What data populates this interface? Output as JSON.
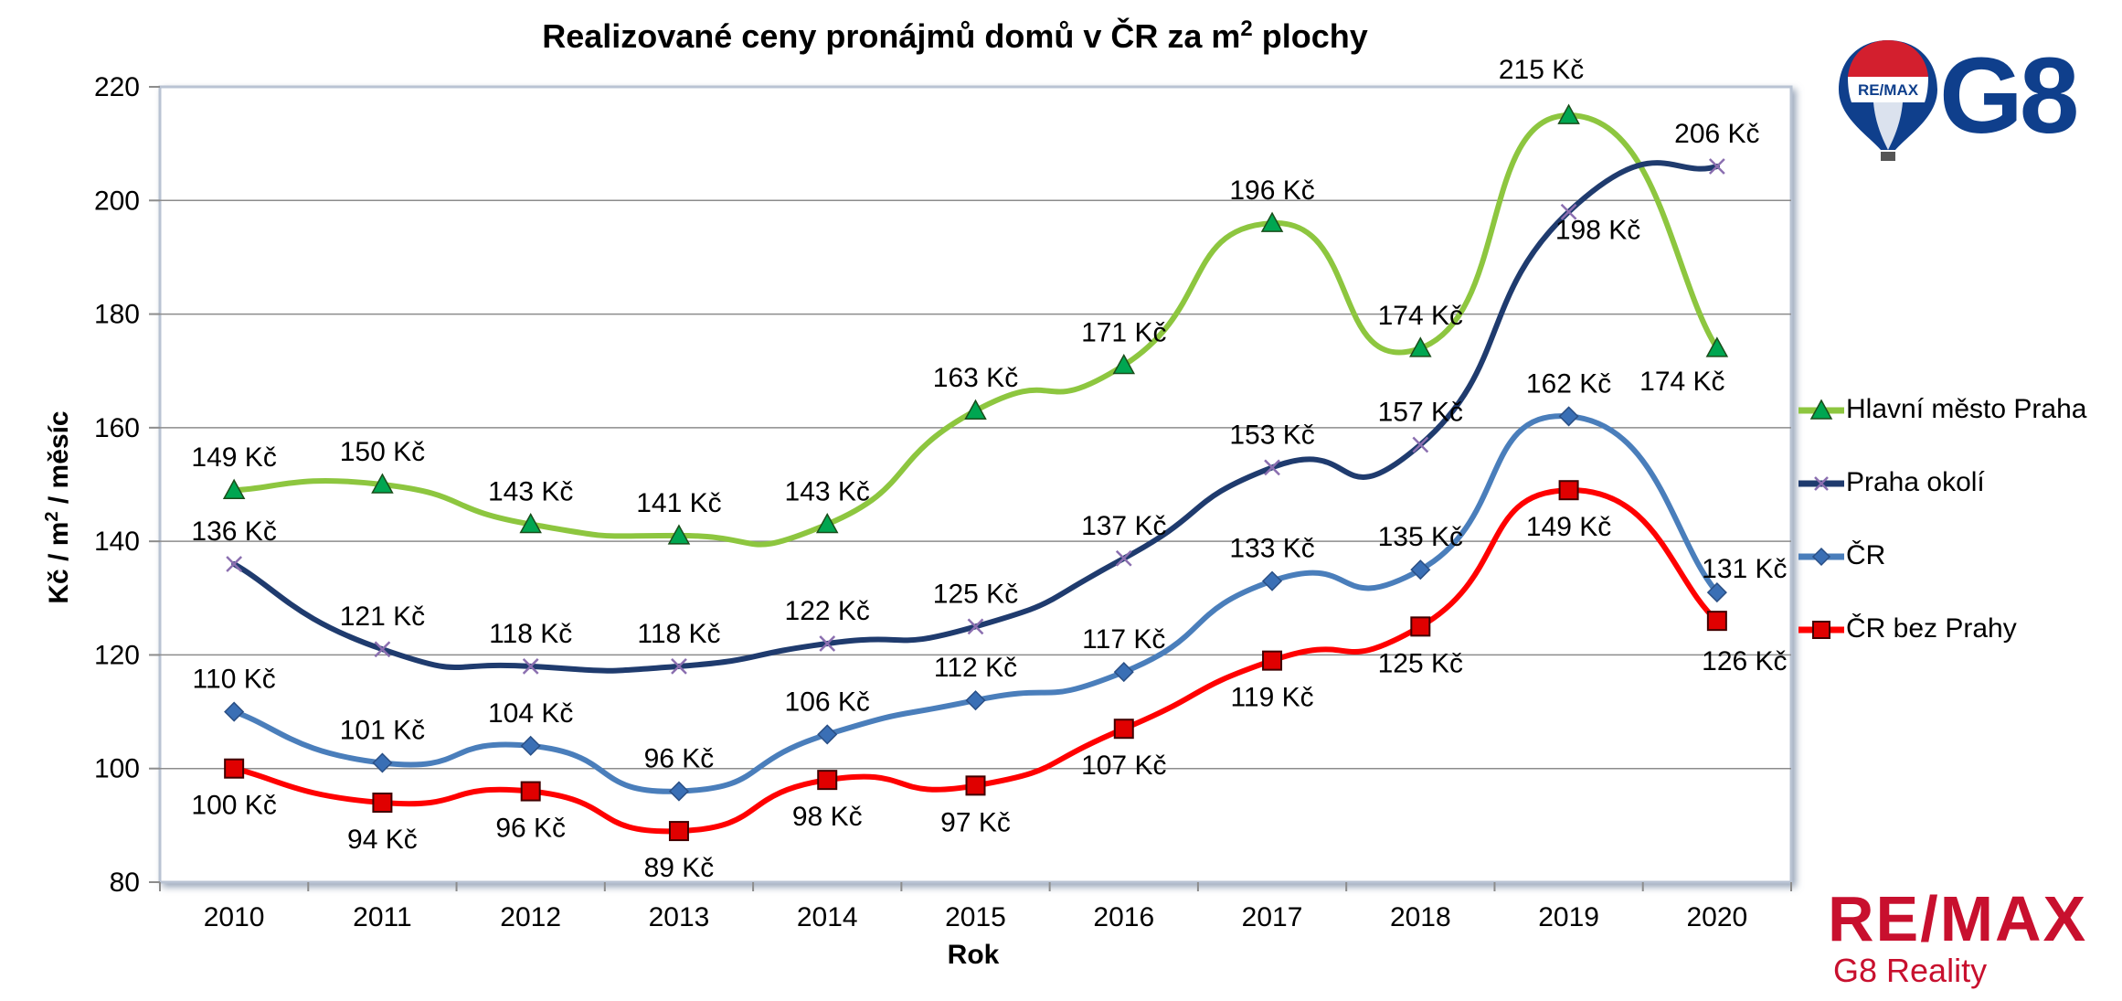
{
  "chart_data": {
    "type": "line",
    "title": "Realizované ceny pronájmů domů v ČR za m",
    "title_sup": "2",
    "title_suffix": " plochy",
    "xlabel": "Rok",
    "ylabel_prefix": "Kč / m",
    "ylabel_sup": "2",
    "ylabel_suffix": " / měsíc",
    "ylim": [
      80,
      220
    ],
    "yticks": [
      80,
      100,
      120,
      140,
      160,
      180,
      200,
      220
    ],
    "x": [
      "2010",
      "2011",
      "2012",
      "2013",
      "2014",
      "2015",
      "2016",
      "2017",
      "2018",
      "2019",
      "2020"
    ],
    "grid": true,
    "legend_position": "right",
    "series": [
      {
        "name": "Hlavní město Praha",
        "color": "#8dc63f",
        "marker": "triangle",
        "values": [
          149,
          150,
          143,
          141,
          143,
          163,
          171,
          196,
          174,
          215,
          174
        ],
        "labels": [
          "149 Kč",
          "150 Kč",
          "143 Kč",
          "141 Kč",
          "143 Kč",
          "163 Kč",
          "171 Kč",
          "196 Kč",
          "174 Kč",
          "215 Kč",
          "174 Kč"
        ]
      },
      {
        "name": "Praha okolí",
        "color": "#1f3b6e",
        "marker": "x",
        "values": [
          136,
          121,
          118,
          118,
          122,
          125,
          137,
          153,
          157,
          198,
          206
        ],
        "labels": [
          "136 Kč",
          "121 Kč",
          "118 Kč",
          "118 Kč",
          "122 Kč",
          "125 Kč",
          "137 Kč",
          "153 Kč",
          "157 Kč",
          "198 Kč",
          "206 Kč"
        ]
      },
      {
        "name": "ČR",
        "color": "#4a7ebb",
        "marker": "diamond",
        "values": [
          110,
          101,
          104,
          96,
          106,
          112,
          117,
          133,
          135,
          162,
          131
        ],
        "labels": [
          "110 Kč",
          "101 Kč",
          "104 Kč",
          "96 Kč",
          "106 Kč",
          "112 Kč",
          "117 Kč",
          "133 Kč",
          "135 Kč",
          "162 Kč",
          "131 Kč"
        ]
      },
      {
        "name": "ČR bez Prahy",
        "color": "#ff0000",
        "marker": "square",
        "values": [
          100,
          94,
          96,
          89,
          98,
          97,
          107,
          119,
          125,
          149,
          126
        ],
        "labels": [
          "100 Kč",
          "94 Kč",
          "96 Kč",
          "89 Kč",
          "98 Kč",
          "97 Kč",
          "107 Kč",
          "119 Kč",
          "125 Kč",
          "149 Kč",
          "126 Kč"
        ]
      }
    ]
  },
  "logos": {
    "balloon_text": "RE/MAX",
    "g8_text": "G8",
    "bottom_word": "RE/MAX",
    "bottom_sub": "G8 Reality"
  }
}
